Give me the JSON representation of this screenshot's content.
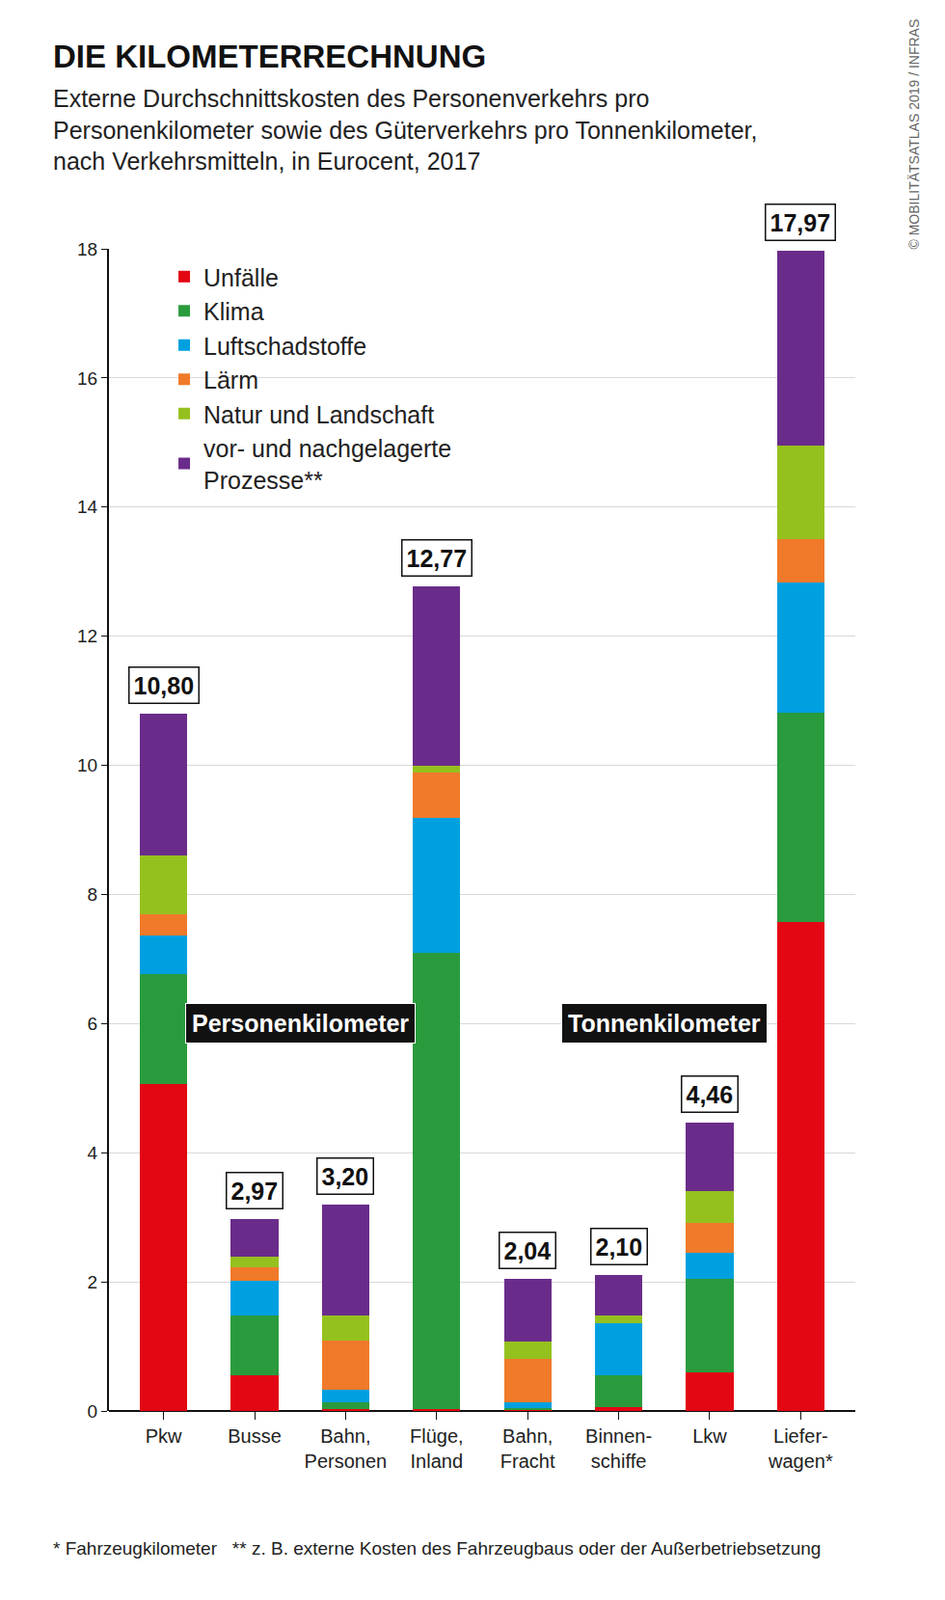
{
  "chart_data": {
    "type": "bar",
    "stacked": true,
    "title": "DIE KILOMETERRECHNUNG",
    "subtitle": "Externe Durchschnittskosten des Personenverkehrs pro\nPersonenkilometer sowie des Güterverkehrs pro Tonnenkilometer,\nnach Verkehrsmitteln, in Eurocent, 2017",
    "categories": [
      "Pkw",
      "Busse",
      "Bahn,\nPersonen",
      "Flüge,\nInland",
      "Bahn,\nFracht",
      "Binnen-\nschiffe",
      "Lkw",
      "Liefer-\nwagen*"
    ],
    "series": [
      {
        "name": "Unfälle",
        "color": "#e30613",
        "values": [
          5.06,
          0.55,
          0.03,
          0.03,
          0.02,
          0.06,
          0.6,
          7.58
        ]
      },
      {
        "name": "Klima",
        "color": "#2a9b3d",
        "values": [
          1.7,
          0.93,
          0.11,
          7.06,
          0.02,
          0.49,
          1.45,
          3.23
        ]
      },
      {
        "name": "Luftschadstoffe",
        "color": "#00a0e0",
        "values": [
          0.6,
          0.54,
          0.19,
          2.09,
          0.1,
          0.81,
          0.4,
          2.02
        ]
      },
      {
        "name": "Lärm",
        "color": "#f07a2a",
        "values": [
          0.33,
          0.21,
          0.76,
          0.71,
          0.67,
          0.0,
          0.47,
          0.68
        ]
      },
      {
        "name": "Natur und Landschaft",
        "color": "#95c11f",
        "values": [
          0.92,
          0.16,
          0.39,
          0.11,
          0.26,
          0.12,
          0.49,
          1.45
        ]
      },
      {
        "name": "vor- und nachgelagerte\nProzesse**",
        "color": "#6a2c8a",
        "values": [
          2.19,
          0.58,
          1.72,
          2.77,
          0.97,
          0.62,
          1.05,
          3.01
        ]
      }
    ],
    "totals": [
      10.8,
      2.97,
      3.2,
      12.77,
      2.04,
      2.1,
      4.46,
      17.97
    ],
    "total_labels": [
      "10,80",
      "2,97",
      "3,20",
      "12,77",
      "2,04",
      "2,10",
      "4,46",
      "17,97"
    ],
    "groups": [
      {
        "label": "Personenkilometer",
        "categories": [
          0,
          1,
          2,
          3
        ]
      },
      {
        "label": "Tonnenkilometer",
        "categories": [
          4,
          5,
          6,
          7
        ]
      }
    ],
    "ylim": [
      0,
      18
    ],
    "yticks": [
      0,
      2,
      4,
      6,
      8,
      10,
      12,
      14,
      16,
      18
    ],
    "grid": true,
    "legend": "top left",
    "notes": [
      "* Fahrzeugkilometer",
      "** z. B. externe Kosten des Fahrzeugbaus oder der Außerbetriebsetzung"
    ],
    "source": "© MOBILITÄTSATLAS 2019 / INFRAS"
  }
}
